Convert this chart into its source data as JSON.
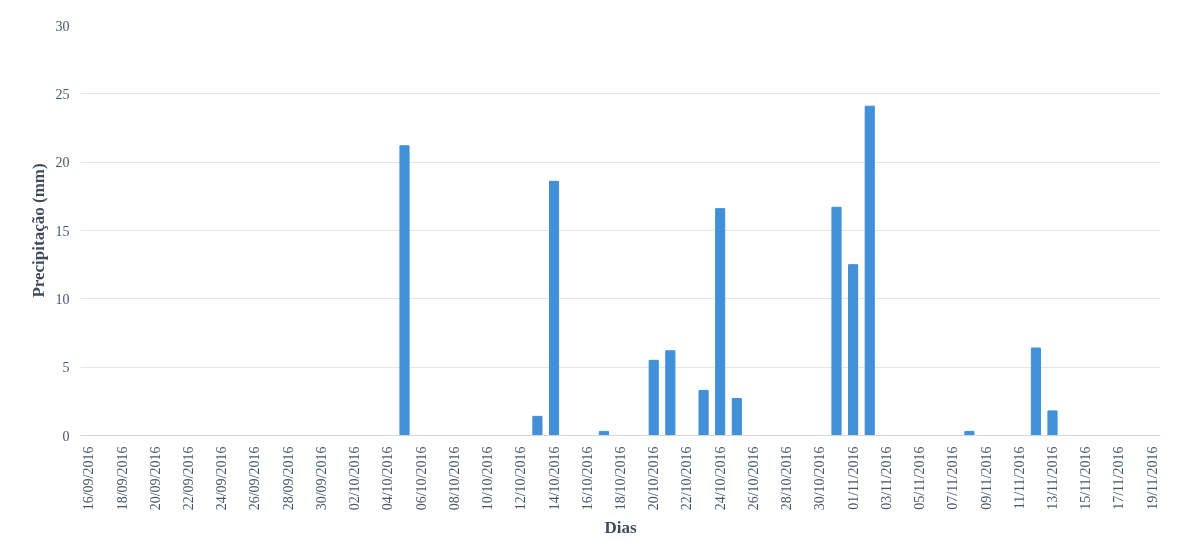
{
  "chart_data": {
    "type": "bar",
    "xlabel": "Dias",
    "ylabel": "Precipitação (mm)",
    "categories": [
      "16/09/2016",
      null,
      "18/09/2016",
      null,
      "20/09/2016",
      null,
      "22/09/2016",
      null,
      "24/09/2016",
      null,
      "26/09/2016",
      null,
      "28/09/2016",
      null,
      "30/09/2016",
      null,
      "02/10/2016",
      null,
      "04/10/2016",
      null,
      "06/10/2016",
      null,
      "08/10/2016",
      null,
      "10/10/2016",
      null,
      "12/10/2016",
      null,
      "14/10/2016",
      null,
      "16/10/2016",
      null,
      "18/10/2016",
      null,
      "20/10/2016",
      null,
      "22/10/2016",
      null,
      "24/10/2016",
      null,
      "26/10/2016",
      null,
      "28/10/2016",
      null,
      "30/10/2016",
      null,
      "01/11/2016",
      null,
      "03/11/2016",
      null,
      "05/11/2016",
      null,
      "07/11/2016",
      null,
      "09/11/2016",
      null,
      "11/11/2016",
      null,
      "13/11/2016",
      null,
      "15/11/2016",
      null,
      "17/11/2016",
      null,
      "19/11/2016"
    ],
    "values": [
      0,
      0,
      0,
      0,
      0,
      0,
      0,
      0,
      0,
      0,
      0,
      0,
      0,
      0,
      0,
      0,
      0,
      0,
      0,
      21.2,
      0,
      0,
      0,
      0,
      0,
      0,
      0,
      1.4,
      18.6,
      0,
      0,
      0.3,
      0,
      0,
      5.5,
      6.2,
      0,
      3.3,
      16.6,
      2.7,
      0,
      0,
      0,
      0,
      0,
      16.7,
      12.5,
      24.1,
      0,
      0,
      0,
      0,
      0,
      0.3,
      0,
      0,
      0,
      6.4,
      1.8,
      0,
      0,
      0,
      0,
      0,
      0
    ],
    "color": "#4190d8",
    "ylim": [
      0,
      30
    ],
    "yticks": [
      0,
      5,
      10,
      15,
      20,
      25,
      30
    ],
    "grid": "y"
  }
}
